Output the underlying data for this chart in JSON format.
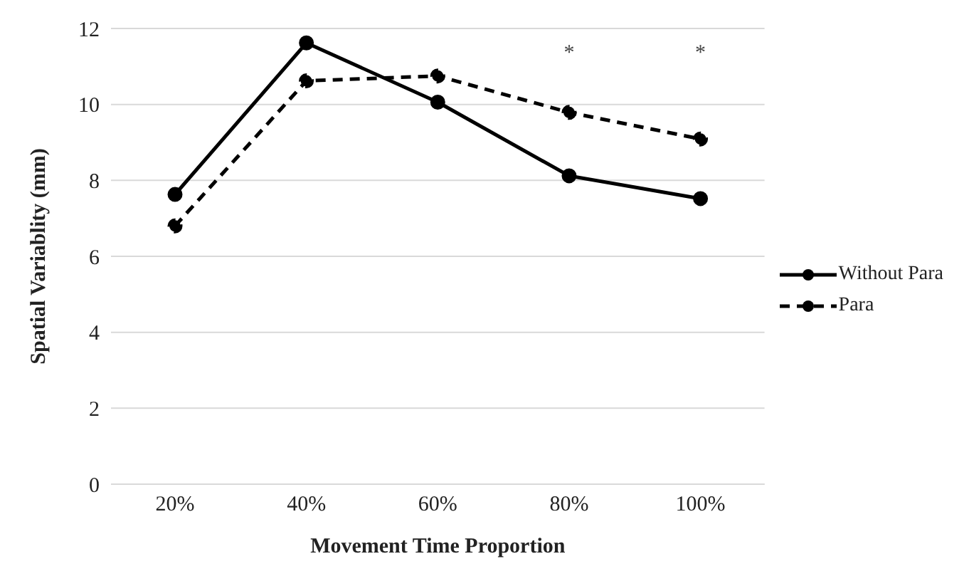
{
  "chart_data": {
    "type": "line",
    "xlabel": "Movement Time Proportion",
    "ylabel": "Spatial Variablity (mm)",
    "categories": [
      "20%",
      "40%",
      "60%",
      "80%",
      "100%"
    ],
    "series": [
      {
        "name": "Without Para",
        "color": "#000000",
        "line_style": "solid",
        "values": [
          7.63,
          11.62,
          10.06,
          8.12,
          7.52
        ]
      },
      {
        "name": "Para",
        "color": "#000000",
        "line_style": "dashed",
        "values": [
          6.8,
          10.62,
          10.75,
          9.79,
          9.09
        ]
      }
    ],
    "ylim": [
      0,
      12
    ],
    "yticks": [
      0,
      2,
      4,
      6,
      8,
      10,
      12
    ],
    "grid": "y",
    "legend": "right",
    "marker": "circle",
    "annotations": [
      "*",
      "*"
    ]
  }
}
